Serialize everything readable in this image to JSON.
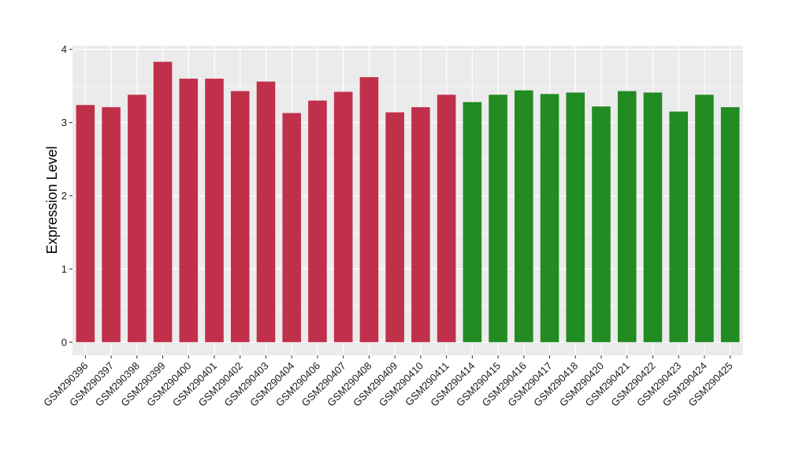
{
  "chart_data": {
    "type": "bar",
    "title": "",
    "xlabel": "",
    "ylabel": "Expression Level",
    "ylim": [
      -0.18,
      4.05
    ],
    "yticks": [
      0,
      1,
      2,
      3,
      4
    ],
    "ytick_labels": [
      "0",
      "1",
      "2",
      "3",
      "4"
    ],
    "grid": true,
    "legend": "none",
    "background_color": "#ebebeb",
    "grid_color": "#ffffff",
    "categories": [
      "GSM290396",
      "GSM290397",
      "GSM290398",
      "GSM290399",
      "GSM290400",
      "GSM290401",
      "GSM290402",
      "GSM290403",
      "GSM290404",
      "GSM290406",
      "GSM290407",
      "GSM290408",
      "GSM290409",
      "GSM290410",
      "GSM290411",
      "GSM290414",
      "GSM290415",
      "GSM290416",
      "GSM290417",
      "GSM290418",
      "GSM290420",
      "GSM290421",
      "GSM290422",
      "GSM290423",
      "GSM290424",
      "GSM290425"
    ],
    "values": [
      3.24,
      3.21,
      3.38,
      3.83,
      3.6,
      3.6,
      3.43,
      3.56,
      3.13,
      3.3,
      3.42,
      3.62,
      3.14,
      3.21,
      3.38,
      3.28,
      3.38,
      3.44,
      3.39,
      3.41,
      3.22,
      3.43,
      3.41,
      3.15,
      3.38,
      3.21
    ],
    "groups": [
      {
        "color": "#c0304a",
        "from": 0,
        "to": 14
      },
      {
        "color": "#228b22",
        "from": 15,
        "to": 25
      }
    ]
  }
}
